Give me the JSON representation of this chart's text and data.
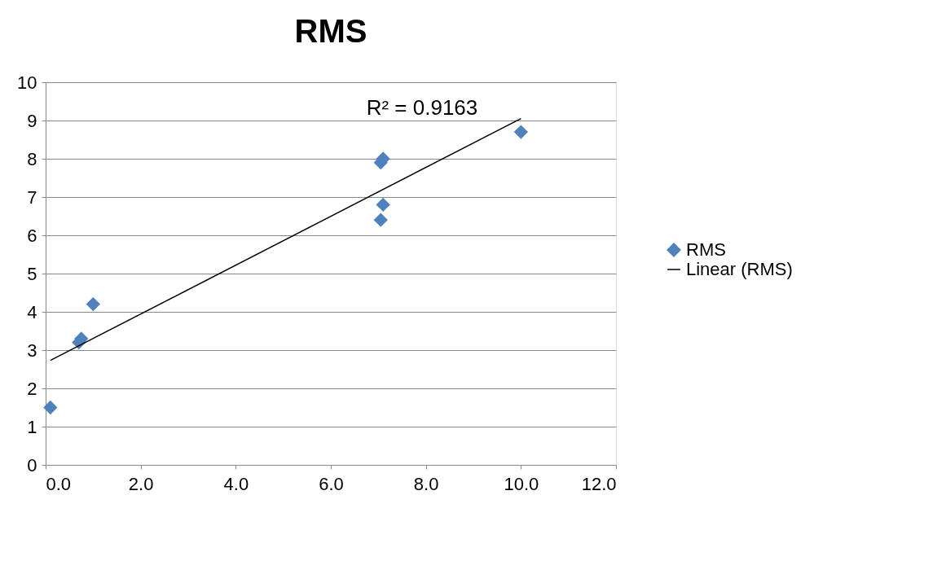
{
  "chart_data": {
    "type": "scatter",
    "title": "RMS",
    "grid": "y",
    "legend": "right",
    "xlim": [
      0,
      12
    ],
    "xticks": [
      {
        "value": 0,
        "label": "0.0"
      },
      {
        "value": 2,
        "label": "2.0"
      },
      {
        "value": 4,
        "label": "4.0"
      },
      {
        "value": 6,
        "label": "6.0"
      },
      {
        "value": 8,
        "label": "8.0"
      },
      {
        "value": 10,
        "label": "10.0"
      },
      {
        "value": 12,
        "label": "12.0"
      }
    ],
    "ylim": [
      0,
      10
    ],
    "yticks": [
      0,
      1,
      2,
      3,
      4,
      5,
      6,
      7,
      8,
      9,
      10
    ],
    "annotations": [
      "R² = 0.9163"
    ],
    "series": [
      {
        "name": "RMS",
        "marker": "diamond",
        "color": "#4f81bd",
        "x": [
          0.1,
          0.7,
          0.75,
          1.0,
          7.05,
          7.1,
          7.1,
          7.05,
          10.0
        ],
        "values": [
          1.5,
          3.2,
          3.3,
          4.2,
          7.9,
          8.0,
          6.8,
          6.4,
          8.7
        ]
      },
      {
        "name": "Linear (RMS)",
        "type": "line",
        "color": "#000000",
        "line_style": "solid",
        "x": [
          0.1,
          10.0
        ],
        "values": [
          2.73,
          9.05
        ]
      }
    ]
  }
}
